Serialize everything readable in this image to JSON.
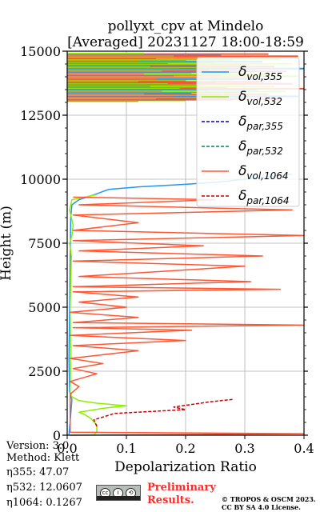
{
  "chart_data": {
    "type": "line",
    "title": "pollyxt_cpv at Mindelo",
    "subtitle": "[Averaged] 20231127 18:00-18:59",
    "xlabel": "Depolarization Ratio",
    "ylabel": "Height (m)",
    "xlim": [
      0.0,
      0.4
    ],
    "ylim": [
      0,
      15000
    ],
    "xticks": [
      "0.0",
      "0.1",
      "0.2",
      "0.3",
      "0.4"
    ],
    "yticks": [
      "0",
      "2500",
      "5000",
      "7500",
      "10000",
      "12500",
      "15000"
    ],
    "grid": true,
    "legend_position": "top-right",
    "legend": [
      {
        "base": "δ",
        "sub": "vol,355",
        "color": "#2196f3",
        "dash": "solid"
      },
      {
        "base": "δ",
        "sub": "vol,532",
        "color": "#8cee00",
        "dash": "solid"
      },
      {
        "base": "δ",
        "sub": "par,355",
        "color": "#0000cc",
        "dash": "dashed"
      },
      {
        "base": "δ",
        "sub": "par,532",
        "color": "#008844",
        "dash": "dashed"
      },
      {
        "base": "δ",
        "sub": "vol,1064",
        "color": "#ff5733",
        "dash": "solid"
      },
      {
        "base": "δ",
        "sub": "par,1064",
        "color": "#cc0000",
        "dash": "dashed"
      }
    ],
    "series": [
      {
        "name": "δvol,355",
        "color": "#2196f3",
        "dash": "solid",
        "points": [
          [
            0.003,
            0
          ],
          [
            0.004,
            300
          ],
          [
            0.006,
            800
          ],
          [
            0.008,
            1400
          ],
          [
            0.004,
            1700
          ],
          [
            0.003,
            3000
          ],
          [
            0.004,
            5000
          ],
          [
            0.005,
            7000
          ],
          [
            0.006,
            8500
          ],
          [
            0.008,
            9000
          ],
          [
            0.02,
            9200
          ],
          [
            0.04,
            9350
          ],
          [
            0.07,
            9600
          ],
          [
            0.12,
            9700
          ],
          [
            0.2,
            9800
          ],
          [
            0.26,
            9900
          ],
          [
            0.3,
            10000
          ],
          [
            0.34,
            10100
          ],
          [
            0.38,
            10200
          ]
        ]
      },
      {
        "name": "δvol,532",
        "color": "#8cee00",
        "dash": "solid",
        "points": [
          [
            0.045,
            0
          ],
          [
            0.05,
            150
          ],
          [
            0.05,
            400
          ],
          [
            0.04,
            650
          ],
          [
            0.03,
            800
          ],
          [
            0.02,
            900
          ],
          [
            0.06,
            1050
          ],
          [
            0.1,
            1150
          ],
          [
            0.05,
            1250
          ],
          [
            0.02,
            1350
          ],
          [
            0.008,
            1500
          ],
          [
            0.005,
            1700
          ],
          [
            0.006,
            3000
          ],
          [
            0.005,
            5000
          ],
          [
            0.007,
            7000
          ],
          [
            0.004,
            7500
          ],
          [
            0.008,
            7800
          ],
          [
            0.01,
            8200
          ],
          [
            0.004,
            8800
          ],
          [
            0.008,
            9200
          ],
          [
            0.03,
            9300
          ],
          [
            0.05,
            9400
          ]
        ]
      },
      {
        "name": "δvol,1064",
        "color": "#ff5733",
        "dash": "solid",
        "points": [
          [
            0.005,
            0
          ],
          [
            0.4,
            60
          ],
          [
            0.005,
            120
          ],
          [
            0.005,
            1600
          ],
          [
            0.02,
            1900
          ],
          [
            0.005,
            2100
          ],
          [
            0.05,
            2400
          ],
          [
            0.01,
            2600
          ],
          [
            0.06,
            2800
          ],
          [
            0.005,
            3000
          ],
          [
            0.12,
            3300
          ],
          [
            0.01,
            3500
          ],
          [
            0.2,
            3700
          ],
          [
            0.005,
            3900
          ],
          [
            0.21,
            4100
          ],
          [
            0.01,
            4200
          ],
          [
            0.4,
            4300
          ],
          [
            0.01,
            4400
          ],
          [
            0.12,
            4600
          ],
          [
            0.005,
            4800
          ],
          [
            0.1,
            5000
          ],
          [
            0.02,
            5200
          ],
          [
            0.12,
            5400
          ],
          [
            0.01,
            5600
          ],
          [
            0.36,
            5700
          ],
          [
            0.01,
            5800
          ],
          [
            0.31,
            6000
          ],
          [
            0.02,
            6200
          ],
          [
            0.3,
            6600
          ],
          [
            0.01,
            6800
          ],
          [
            0.33,
            7000
          ],
          [
            0.02,
            7200
          ],
          [
            0.23,
            7400
          ],
          [
            0.01,
            7600
          ],
          [
            0.4,
            7800
          ],
          [
            0.01,
            8000
          ],
          [
            0.12,
            8300
          ],
          [
            0.01,
            8600
          ],
          [
            0.38,
            8800
          ],
          [
            0.02,
            9000
          ],
          [
            0.25,
            9200
          ],
          [
            0.01,
            9300
          ]
        ]
      },
      {
        "name": "δpar,1064",
        "color": "#cc0000",
        "dash": "dashed",
        "points": [
          [
            0.05,
            350
          ],
          [
            0.045,
            600
          ],
          [
            0.08,
            850
          ],
          [
            0.2,
            1000
          ],
          [
            0.18,
            1100
          ],
          [
            0.21,
            1200
          ],
          [
            0.24,
            1300
          ],
          [
            0.28,
            1400
          ]
        ]
      }
    ]
  },
  "info": {
    "version": "Version: 3.0",
    "method": "Method: Klett",
    "eta355": "η355:  47.07",
    "eta532": "η532: 12.0607",
    "eta1064": "η1064: 0.1267"
  },
  "footer": {
    "license_icon": "cc-by-sa-badge-icon",
    "prelim_line1": "Preliminary",
    "prelim_line2": "Results.",
    "credit_line1": "© TROPOS & OSCM 2023.",
    "credit_line2": "CC BY SA 4.0 License."
  }
}
